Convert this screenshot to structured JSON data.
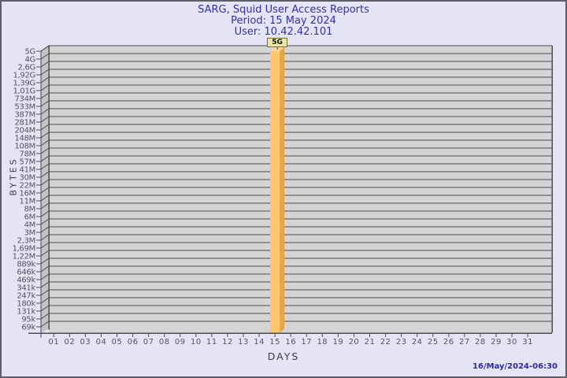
{
  "window": {
    "title_line1": "SARG, Squid User Access Reports",
    "title_line2": "Period: 15 May 2024",
    "title_line3": "User: 10.42.42.101",
    "generated_timestamp": "16/May/2024-06:30"
  },
  "chart_data": {
    "type": "bar",
    "title": "SARG, Squid User Access Reports",
    "subtitle_period": "Period: 15 May 2024",
    "subtitle_user": "User: 10.42.42.101",
    "xlabel": "DAYS",
    "ylabel": "BYTES",
    "y_scale": "logarithmic",
    "x_tick_labels": [
      "01",
      "02",
      "03",
      "04",
      "05",
      "06",
      "07",
      "08",
      "09",
      "10",
      "11",
      "12",
      "13",
      "14",
      "15",
      "16",
      "17",
      "18",
      "19",
      "20",
      "21",
      "22",
      "23",
      "24",
      "25",
      "26",
      "27",
      "28",
      "29",
      "30",
      "31"
    ],
    "y_tick_labels": [
      "5G",
      "4G",
      "2,6G",
      "1,92G",
      "1,39G",
      "1,01G",
      "734M",
      "533M",
      "387M",
      "281M",
      "204M",
      "148M",
      "108M",
      "78M",
      "57M",
      "41M",
      "30M",
      "22M",
      "16M",
      "11M",
      "8M",
      "6M",
      "4M",
      "3M",
      "2,3M",
      "1,69M",
      "1,22M",
      "889k",
      "646k",
      "469k",
      "341k",
      "247k",
      "180k",
      "131k",
      "95k",
      "69k"
    ],
    "values": [
      null,
      null,
      null,
      null,
      null,
      null,
      null,
      null,
      null,
      null,
      null,
      null,
      null,
      null,
      "5G",
      null,
      null,
      null,
      null,
      null,
      null,
      null,
      null,
      null,
      null,
      null,
      null,
      null,
      null,
      null,
      null
    ],
    "bars": [
      {
        "x": "15",
        "value_label": "5G"
      }
    ],
    "legend": null,
    "grid": "horizontal-on"
  },
  "colors": {
    "background": "#e4e4f4",
    "border": "#5f5f68",
    "title_text": "#3232a4",
    "timestamp_text": "#2a2aa0",
    "axis_text": "#54545a",
    "axis_title_text": "#3c3c42",
    "plot_bg": "#d4d4d4",
    "wall_bg": "#c4c4c4",
    "grid_line": "#4d4d52",
    "bar_front": "#ffc66c",
    "bar_side": "#e2a74b",
    "bar_top": "#ffd795",
    "bar_label_bg": "#ebe7a9",
    "bar_label_border": "#74702c"
  }
}
